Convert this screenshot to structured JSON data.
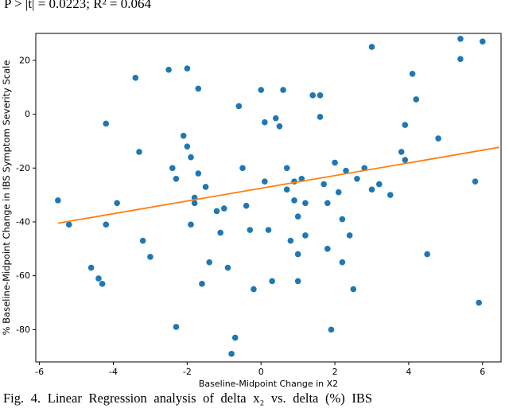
{
  "page": {
    "top_text": "P > |t| = 0.0223; R² = 0.064",
    "caption": "Fig. 4. Linear Regression analysis of delta x₂ vs. delta (%) IBS"
  },
  "chart_data": {
    "type": "scatter",
    "title": "",
    "xlabel": "Baseline-Midpoint Change in X2",
    "ylabel": "% Baseline-Midpoint Change in IBS Symptom Severity Scale",
    "xlim": [
      -6.1,
      6.5
    ],
    "ylim": [
      -92,
      30
    ],
    "xticks": [
      -6,
      -4,
      -2,
      0,
      2,
      4,
      6
    ],
    "yticks": [
      20,
      0,
      -20,
      -40,
      -60,
      -80
    ],
    "grid": false,
    "legend": "none",
    "point_color": "#1f77b4",
    "line_color": "#ff7f0e",
    "regression_line": {
      "x1": -5.5,
      "y1": -40.5,
      "x2": 6.45,
      "y2": -12.3
    },
    "points": [
      [
        -5.5,
        -32
      ],
      [
        -5.2,
        -41
      ],
      [
        -4.6,
        -57
      ],
      [
        -4.4,
        -61
      ],
      [
        -4.3,
        -63
      ],
      [
        -4.2,
        -41
      ],
      [
        -4.2,
        -3.5
      ],
      [
        -3.9,
        -33
      ],
      [
        -3.4,
        13.5
      ],
      [
        -3.3,
        -14
      ],
      [
        -3.2,
        -47
      ],
      [
        -3.0,
        -53
      ],
      [
        -2.5,
        16.5
      ],
      [
        -2.4,
        -20
      ],
      [
        -2.3,
        -24
      ],
      [
        -2.3,
        -79
      ],
      [
        -2.1,
        -8
      ],
      [
        -2.0,
        17
      ],
      [
        -2.0,
        -12
      ],
      [
        -1.9,
        -16
      ],
      [
        -1.9,
        -41
      ],
      [
        -1.8,
        -31
      ],
      [
        -1.8,
        -33
      ],
      [
        -1.7,
        9.5
      ],
      [
        -1.7,
        -22
      ],
      [
        -1.6,
        -63
      ],
      [
        -1.5,
        -27
      ],
      [
        -1.4,
        -55
      ],
      [
        -1.2,
        -36
      ],
      [
        -1.1,
        -44
      ],
      [
        -1.0,
        -35
      ],
      [
        -0.9,
        -57
      ],
      [
        -0.8,
        -89
      ],
      [
        -0.7,
        -83
      ],
      [
        -0.6,
        3
      ],
      [
        -0.5,
        -20
      ],
      [
        -0.4,
        -34
      ],
      [
        -0.3,
        -43
      ],
      [
        -0.2,
        -65
      ],
      [
        0.0,
        9
      ],
      [
        0.1,
        -3
      ],
      [
        0.1,
        -25
      ],
      [
        0.2,
        -43
      ],
      [
        0.3,
        -62
      ],
      [
        0.4,
        -1.5
      ],
      [
        0.5,
        -4.5
      ],
      [
        0.6,
        9
      ],
      [
        0.7,
        -20
      ],
      [
        0.7,
        -28
      ],
      [
        0.8,
        -47
      ],
      [
        0.9,
        -32
      ],
      [
        0.9,
        -25
      ],
      [
        1.0,
        -38
      ],
      [
        1.0,
        -52
      ],
      [
        1.0,
        -62
      ],
      [
        1.1,
        -24
      ],
      [
        1.2,
        -33
      ],
      [
        1.2,
        -45
      ],
      [
        1.4,
        7
      ],
      [
        1.6,
        7
      ],
      [
        1.6,
        -1
      ],
      [
        1.7,
        -26
      ],
      [
        1.8,
        -33
      ],
      [
        1.8,
        -50
      ],
      [
        1.9,
        -80
      ],
      [
        2.0,
        -18
      ],
      [
        2.1,
        -29
      ],
      [
        2.2,
        -39
      ],
      [
        2.2,
        -55
      ],
      [
        2.3,
        -21
      ],
      [
        2.4,
        -45
      ],
      [
        2.5,
        -65
      ],
      [
        2.6,
        -24
      ],
      [
        2.8,
        -20
      ],
      [
        3.0,
        25
      ],
      [
        3.0,
        -28
      ],
      [
        3.2,
        -26
      ],
      [
        3.5,
        -30
      ],
      [
        3.8,
        -14
      ],
      [
        3.9,
        -4
      ],
      [
        3.9,
        -17
      ],
      [
        4.1,
        15
      ],
      [
        4.2,
        5.5
      ],
      [
        4.5,
        -52
      ],
      [
        4.8,
        -9
      ],
      [
        5.4,
        28
      ],
      [
        5.4,
        20.5
      ],
      [
        5.8,
        -25
      ],
      [
        5.9,
        -70
      ],
      [
        6.0,
        27
      ]
    ]
  }
}
